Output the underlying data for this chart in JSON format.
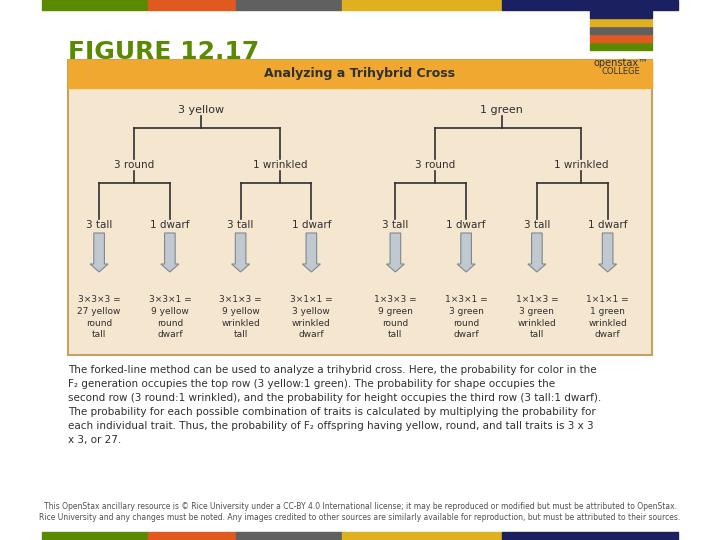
{
  "title": "FIGURE 12.17",
  "title_color": "#5a8a00",
  "header_color": "#f0a830",
  "bg_color": "#f5e6d0",
  "box_border_color": "#c8a060",
  "diagram_title": "Analyzing a Trihybrid Cross",
  "top_row": [
    "3 yellow",
    "1 green"
  ],
  "second_row": [
    "3 round",
    "1 wrinkled",
    "3 round",
    "1 wrinkled"
  ],
  "third_row": [
    "3 tall",
    "1 dwarf",
    "3 tall",
    "1 dwarf",
    "3 tall",
    "1 dwarf",
    "3 tall",
    "1 dwarf"
  ],
  "bottom_results": [
    "3×3×3 =\n27 yellow\nround\ntall",
    "3×3×1 =\n9 yellow\nround\ndwarf",
    "3×1×3 =\n9 yellow\nwrinkled\ntall",
    "3×1×1 =\n3 yellow\nwrinkled\ndwarf",
    "1×3×3 =\n9 green\nround\ntall",
    "1×3×1 =\n3 green\nround\ndwarf",
    "1×1×3 =\n3 green\nwrinkled\ntall",
    "1×1×1 =\n1 green\nwrinkled\ndwarf"
  ],
  "caption": "The forked-line method can be used to analyze a trihybrid cross. Here, the probability for color in the\nF₂ generation occupies the top row (3 yellow:1 green). The probability for shape occupies the\nsecond row (3 round:1 wrinkled), and the probability for height occupies the third row (3 tall:1 dwarf).\nThe probability for each possible combination of traits is calculated by multiplying the probability for\neach individual trait. Thus, the probability of F₂ offspring having yellow, round, and tall traits is 3 x 3\nx 3, or 27.",
  "footer": "This OpenStax ancillary resource is © Rice University under a CC-BY 4.0 International license; it may be reproduced or modified but must be attributed to OpenStax.\nRice University and any changes must be noted. Any images credited to other sources are similarly available for reproduction, but must be attributed to their sources.",
  "bar_colors": [
    "#5a8a00",
    "#e05a20",
    "#606060",
    "#e0b020",
    "#1a2060"
  ],
  "arrow_color": "#c0c8d0",
  "arrow_edge_color": "#808890",
  "line_color": "#303030",
  "text_color": "#303030"
}
